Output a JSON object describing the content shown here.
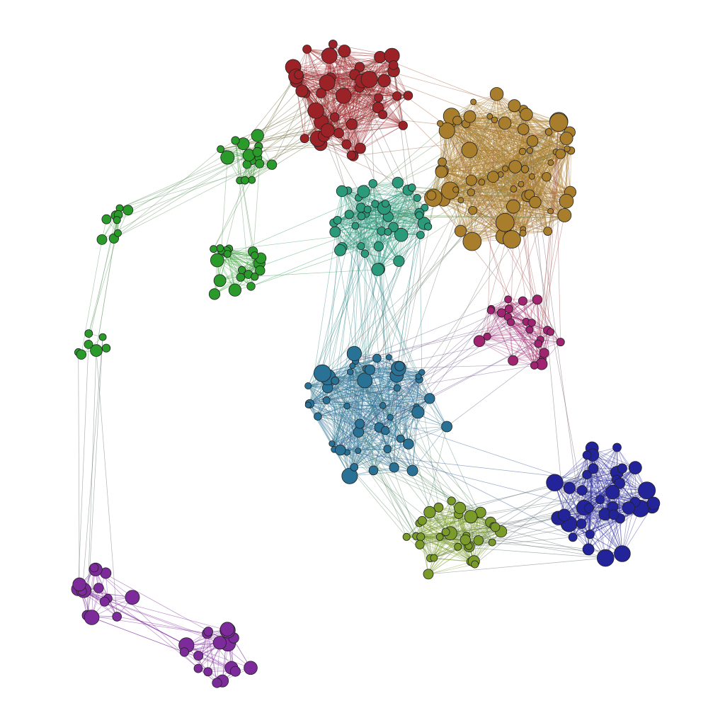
{
  "graph": {
    "type": "network",
    "background": "#ffffff",
    "seed": 7,
    "communities": [
      {
        "name": "red",
        "color": "#9b2226"
      },
      {
        "name": "gold",
        "color": "#a87d2c"
      },
      {
        "name": "teal",
        "color": "#2b9a7a"
      },
      {
        "name": "blue",
        "color": "#2a7196"
      },
      {
        "name": "magenta",
        "color": "#a0246f"
      },
      {
        "name": "navy",
        "color": "#23239a"
      },
      {
        "name": "olive",
        "color": "#7a9b2a"
      },
      {
        "name": "green",
        "color": "#2a9a2a"
      },
      {
        "name": "purple",
        "color": "#7d2a9b"
      }
    ],
    "inter_community_links": [
      [
        "red",
        "gold"
      ],
      [
        "red",
        "teal"
      ],
      [
        "red",
        "green"
      ],
      [
        "gold",
        "teal"
      ],
      [
        "gold",
        "magenta"
      ],
      [
        "gold",
        "blue"
      ],
      [
        "gold",
        "navy"
      ],
      [
        "teal",
        "blue"
      ],
      [
        "teal",
        "green"
      ],
      [
        "blue",
        "magenta"
      ],
      [
        "blue",
        "olive"
      ],
      [
        "blue",
        "navy"
      ],
      [
        "olive",
        "navy"
      ],
      [
        "green",
        "purple"
      ]
    ]
  }
}
